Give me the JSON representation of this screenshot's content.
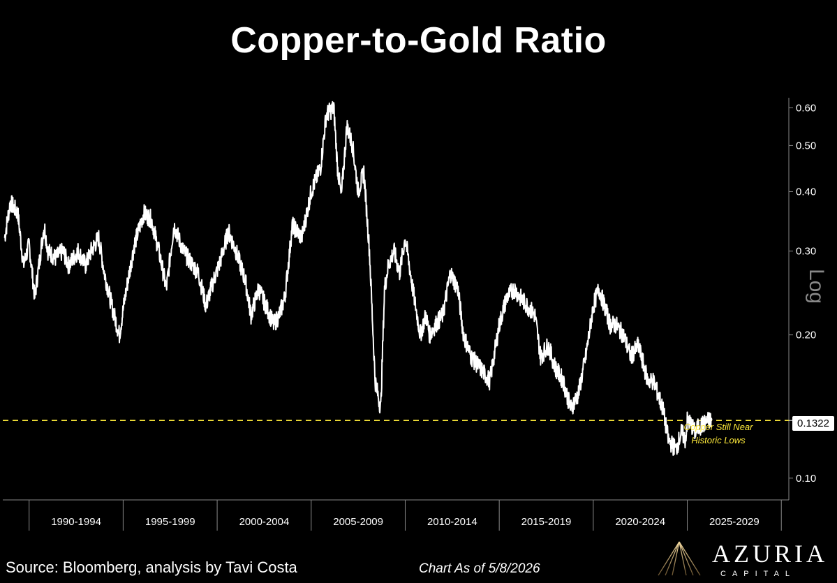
{
  "colors": {
    "background": "#000000",
    "line": "#ffffff",
    "reference": "#ffeb3b",
    "axis": "#888888"
  },
  "chart_data": {
    "type": "line",
    "title": "Copper-to-Gold Ratio",
    "yscale": "log",
    "ylabel": "Log",
    "ylim": [
      0.09,
      0.63
    ],
    "xlim": [
      1988.6,
      2030.4
    ],
    "yticks": [
      "0.60",
      "0.50",
      "0.40",
      "0.30",
      "0.20",
      "0.10"
    ],
    "xtick_labels": [
      "1990-1994",
      "1995-1999",
      "2000-2004",
      "2005-2009",
      "2010-2014",
      "2015-2019",
      "2020-2024",
      "2025-2029"
    ],
    "series": [
      {
        "x": [
          1988.7,
          1989.0,
          1989.4,
          1989.7,
          1990.0,
          1990.3,
          1990.8,
          1991.0,
          1991.4,
          1991.8,
          1992.1,
          1992.6,
          1993.0,
          1993.3,
          1993.7,
          1994.0,
          1994.4,
          1994.8,
          1995.1,
          1995.6,
          1996.1,
          1996.5,
          1996.9,
          1997.3,
          1997.7,
          1998.2,
          1998.7,
          1999.0,
          1999.4,
          1999.8,
          2000.1,
          2000.6,
          2001.0,
          2001.5,
          2001.8,
          2002.2,
          2002.6,
          2003.0,
          2003.3,
          2003.6,
          2004.0,
          2004.5,
          2005.0,
          2005.5,
          2005.8,
          2006.2,
          2006.4,
          2006.6,
          2006.9,
          2007.2,
          2007.5,
          2007.8,
          2008.1,
          2008.4,
          2008.7,
          2008.9,
          2009.1,
          2009.4,
          2009.7,
          2010.0,
          2010.4,
          2010.8,
          2011.1,
          2011.3,
          2011.6,
          2012.0,
          2012.4,
          2012.8,
          2013.1,
          2013.5,
          2014.0,
          2014.5,
          2015.0,
          2015.4,
          2015.8,
          2016.1,
          2016.5,
          2016.9,
          2017.2,
          2017.6,
          2018.0,
          2018.4,
          2018.8,
          2019.2,
          2019.6,
          2020.0,
          2020.3,
          2020.6,
          2020.9,
          2021.2,
          2021.6,
          2022.0,
          2022.4,
          2022.9,
          2023.2,
          2023.7,
          2024.0,
          2024.4,
          2024.7,
          2024.9,
          2025.0,
          2025.2,
          2025.4,
          2025.6,
          2025.9,
          2026.1,
          2026.3
        ],
        "values": [
          0.32,
          0.38,
          0.36,
          0.28,
          0.31,
          0.24,
          0.34,
          0.3,
          0.29,
          0.3,
          0.28,
          0.3,
          0.28,
          0.3,
          0.32,
          0.27,
          0.23,
          0.2,
          0.24,
          0.31,
          0.36,
          0.35,
          0.3,
          0.25,
          0.34,
          0.3,
          0.28,
          0.27,
          0.23,
          0.26,
          0.28,
          0.33,
          0.3,
          0.26,
          0.22,
          0.25,
          0.23,
          0.21,
          0.22,
          0.24,
          0.34,
          0.32,
          0.4,
          0.45,
          0.58,
          0.6,
          0.45,
          0.39,
          0.55,
          0.5,
          0.4,
          0.44,
          0.3,
          0.16,
          0.14,
          0.25,
          0.28,
          0.3,
          0.27,
          0.32,
          0.25,
          0.2,
          0.22,
          0.2,
          0.21,
          0.22,
          0.27,
          0.25,
          0.2,
          0.18,
          0.17,
          0.16,
          0.21,
          0.24,
          0.25,
          0.24,
          0.23,
          0.22,
          0.18,
          0.19,
          0.17,
          0.16,
          0.14,
          0.15,
          0.18,
          0.23,
          0.25,
          0.23,
          0.21,
          0.21,
          0.2,
          0.18,
          0.19,
          0.16,
          0.16,
          0.14,
          0.12,
          0.115,
          0.125,
          0.12,
          0.132,
          0.13,
          0.125,
          0.128,
          0.13,
          0.132,
          0.1322
        ]
      }
    ],
    "last_value": "0.1322",
    "reference_line": {
      "value": 0.1322,
      "style": "dashed"
    },
    "annotation": "Copper Still Near Historic Lows"
  },
  "footer": {
    "source": "Source: Bloomberg, analysis by Tavi Costa",
    "as_of": "Chart As of 5/8/2026"
  },
  "logo": {
    "name": "AZURIA",
    "sub": "CAPITAL"
  }
}
